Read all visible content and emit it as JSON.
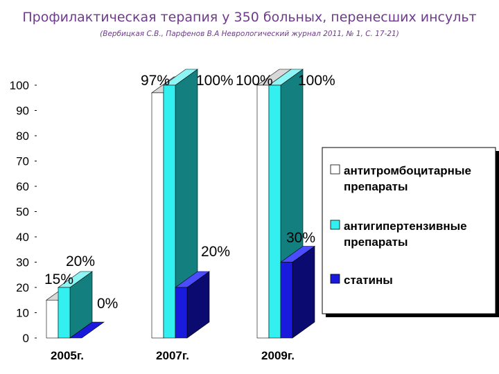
{
  "header": {
    "title": "Профилактическая терапия у 350 больных, перенесших инсульт",
    "subtitle": "(Вербицкая С.В., Парфенов В.А Неврологический журнал 2011, № 1, С. 17-21)"
  },
  "chart_data": {
    "type": "bar",
    "style": "3d-clustered",
    "categories": [
      "2005г.",
      "2007г.",
      "2009г."
    ],
    "series": [
      {
        "name": "антитромбоцитарные препараты",
        "legend_lines": [
          "антитромбоцитарные",
          "препараты"
        ],
        "color": "#ffffff",
        "values": [
          15,
          97,
          100
        ],
        "labels": [
          "15%",
          "97%",
          "100%"
        ]
      },
      {
        "name": "антигипертензивные препараты",
        "legend_lines": [
          "антигипертензивные",
          "препараты"
        ],
        "color": "#33f0f0",
        "values": [
          20,
          100,
          100
        ],
        "labels": [
          "20%",
          "100%",
          "100%"
        ]
      },
      {
        "name": "статины",
        "legend_lines": [
          "статины"
        ],
        "color": "#1a1adc",
        "values": [
          0,
          20,
          30
        ],
        "labels": [
          "0%",
          "20%",
          "30%"
        ]
      }
    ],
    "y_ticks": [
      "0",
      "10",
      "20",
      "30",
      "40",
      "50",
      "60",
      "70",
      "80",
      "90",
      "100"
    ],
    "ylim": [
      0,
      100
    ],
    "legend_position": "right",
    "grid": false,
    "colors": {
      "white_bar": "#ffffff",
      "cyan_bar": "#33f0f0",
      "blue_bar": "#1a1adc",
      "side_wall": "#137f7f",
      "blue_side": "#0a0a70",
      "title_color": "#6e3b8c"
    }
  }
}
